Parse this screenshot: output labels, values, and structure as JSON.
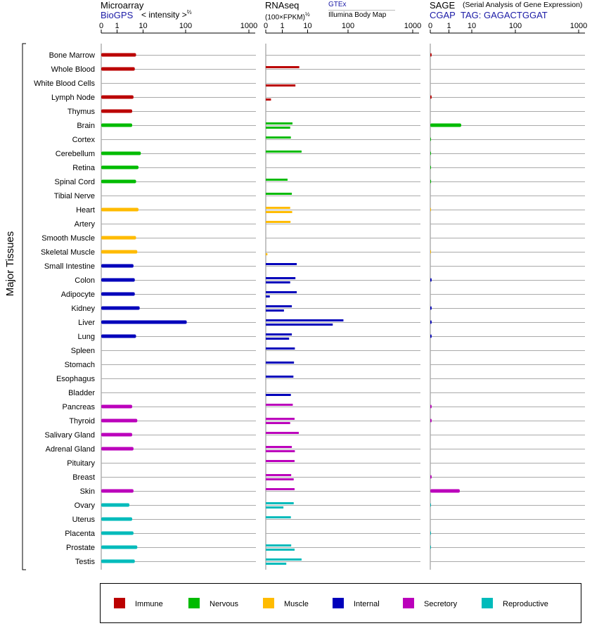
{
  "chart_data": [
    {
      "type": "bar",
      "panel": "microarray",
      "title": "Microarray",
      "source": "BioGPS",
      "axis_label": "< intensity >",
      "axis_exponent": "⅔",
      "scale": "power 2/3",
      "xlim": [
        0,
        1000
      ],
      "ticks": [
        "0",
        "1",
        "10",
        "100",
        "1000"
      ],
      "values": [
        7,
        6.5,
        0,
        6,
        5.5,
        5.5,
        0,
        9,
        8,
        7,
        0,
        8,
        0,
        7,
        7.5,
        6,
        6.5,
        6.5,
        8.5,
        110,
        7,
        0,
        0,
        0,
        0,
        5.5,
        7.5,
        5.5,
        6,
        0,
        0,
        6,
        4.5,
        5.5,
        6,
        7.5,
        6.5
      ]
    },
    {
      "type": "bar",
      "panel": "rnaseq",
      "title": "RNAseq",
      "axis_label": "(100×FPKM)",
      "axis_exponent": "½",
      "legend_top": "GTEx",
      "legend_bottom": "Illumina Body Map",
      "scale": "sqrt",
      "xlim": [
        0,
        1000
      ],
      "ticks": [
        "0",
        "1",
        "10",
        "100",
        "1000"
      ],
      "series": [
        {
          "name": "GTEx",
          "values": [
            0,
            6,
            0,
            0,
            0,
            3.5,
            3,
            7,
            0,
            2.1,
            3.3,
            2.8,
            2.9,
            0,
            0,
            5,
            4.5,
            5,
            3.3,
            85,
            3.3,
            4.3,
            4,
            3.8,
            0,
            3.6,
            4.2,
            5.8,
            3.3,
            4.2,
            3.1,
            4.2,
            3.9,
            3,
            0,
            3.1,
            7
          ]
        },
        {
          "name": "Illumina Body Map",
          "values": [
            0,
            0,
            4.5,
            0.1,
            0,
            2.8,
            0,
            0,
            0,
            0,
            0,
            3.4,
            0,
            0,
            0.01,
            0,
            2.8,
            0.06,
            1.3,
            55,
            2.5,
            0,
            0,
            0,
            3,
            0,
            2.8,
            0,
            4.3,
            0,
            3.9,
            0,
            1.2,
            0,
            0,
            4.2,
            1.8
          ]
        }
      ]
    },
    {
      "type": "bar",
      "panel": "sage",
      "title": "SAGE",
      "subtitle": "(Serial Analysis of Gene Expression)",
      "source": "CGAP",
      "tag_label": "TAG: GAGACTGGAT",
      "scale": "log",
      "xlim": [
        0,
        1000
      ],
      "ticks": [
        "0",
        "1",
        "10",
        "100",
        "1000"
      ],
      "values": [
        0.05,
        0,
        0,
        0.05,
        0,
        4,
        0.02,
        0.02,
        0.02,
        0.03,
        0,
        0.01,
        0,
        0,
        0.01,
        0,
        0.05,
        0,
        0.05,
        0.05,
        0.05,
        0,
        0,
        0,
        0,
        0.05,
        0.05,
        0,
        0,
        0,
        0.05,
        3.5,
        0.02,
        0,
        0.02,
        0.02,
        0
      ]
    }
  ],
  "tissues": [
    "Bone Marrow",
    "Whole Blood",
    "White Blood Cells",
    "Lymph Node",
    "Thymus",
    "Brain",
    "Cortex",
    "Cerebellum",
    "Retina",
    "Spinal Cord",
    "Tibial Nerve",
    "Heart",
    "Artery",
    "Smooth Muscle",
    "Skeletal Muscle",
    "Small Intestine",
    "Colon",
    "Adipocyte",
    "Kidney",
    "Liver",
    "Lung",
    "Spleen",
    "Stomach",
    "Esophagus",
    "Bladder",
    "Pancreas",
    "Thyroid",
    "Salivary Gland",
    "Adrenal Gland",
    "Pituitary",
    "Breast",
    "Skin",
    "Ovary",
    "Uterus",
    "Placenta",
    "Prostate",
    "Testis"
  ],
  "tissue_groups": [
    "immune",
    "immune",
    "immune",
    "immune",
    "immune",
    "nervous",
    "nervous",
    "nervous",
    "nervous",
    "nervous",
    "nervous",
    "muscle",
    "muscle",
    "muscle",
    "muscle",
    "internal",
    "internal",
    "internal",
    "internal",
    "internal",
    "internal",
    "internal",
    "internal",
    "internal",
    "internal",
    "secretory",
    "secretory",
    "secretory",
    "secretory",
    "secretory",
    "secretory",
    "secretory",
    "reproductive",
    "reproductive",
    "reproductive",
    "reproductive",
    "reproductive"
  ],
  "y_axis_label": "Major Tissues",
  "colors": {
    "immune": "#bb0000",
    "nervous": "#00bb00",
    "muscle": "#ffbb00",
    "internal": "#0000bb",
    "secretory": "#bb00bb",
    "reproductive": "#00bbbb"
  },
  "legend": [
    {
      "key": "immune",
      "label": "Immune"
    },
    {
      "key": "nervous",
      "label": "Nervous"
    },
    {
      "key": "muscle",
      "label": "Muscle"
    },
    {
      "key": "internal",
      "label": "Internal"
    },
    {
      "key": "secretory",
      "label": "Secretory"
    },
    {
      "key": "reproductive",
      "label": "Reproductive"
    }
  ]
}
